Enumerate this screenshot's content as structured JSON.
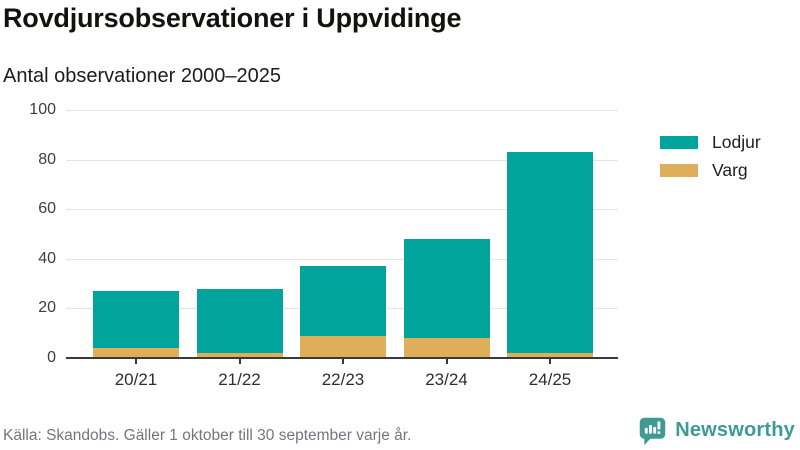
{
  "header": {
    "title": "Rovdjursobservationer i Uppvidinge",
    "subtitle": "Antal observationer 2000–2025"
  },
  "chart_data": {
    "type": "bar",
    "stacked": true,
    "title": "Rovdjursobservationer i Uppvidinge",
    "subtitle": "Antal observationer 2000–2025",
    "categories": [
      "20/21",
      "21/22",
      "22/23",
      "23/24",
      "24/25"
    ],
    "series": [
      {
        "name": "Lodjur",
        "color": "#00a49a",
        "values": [
          23,
          26,
          28,
          40,
          81
        ]
      },
      {
        "name": "Varg",
        "color": "#dfae5a",
        "values": [
          4,
          2,
          9,
          8,
          2
        ]
      }
    ],
    "totals": [
      27,
      28,
      37,
      48,
      83
    ],
    "xlabel": "",
    "ylabel": "",
    "ylim": [
      0,
      100
    ],
    "yticks": [
      0,
      20,
      40,
      60,
      80,
      100
    ],
    "grid": true,
    "legend_position": "right"
  },
  "footer": {
    "source": "Källa: Skandobs. Gäller 1 oktober till 30 september varje år.",
    "brand": "Newsworthy"
  },
  "colors": {
    "lodjur": "#00a49a",
    "varg": "#dfae5a",
    "brand_teal": "#3e9a94",
    "grid": "#e4e4e4",
    "axis": "#3a3a3a"
  }
}
